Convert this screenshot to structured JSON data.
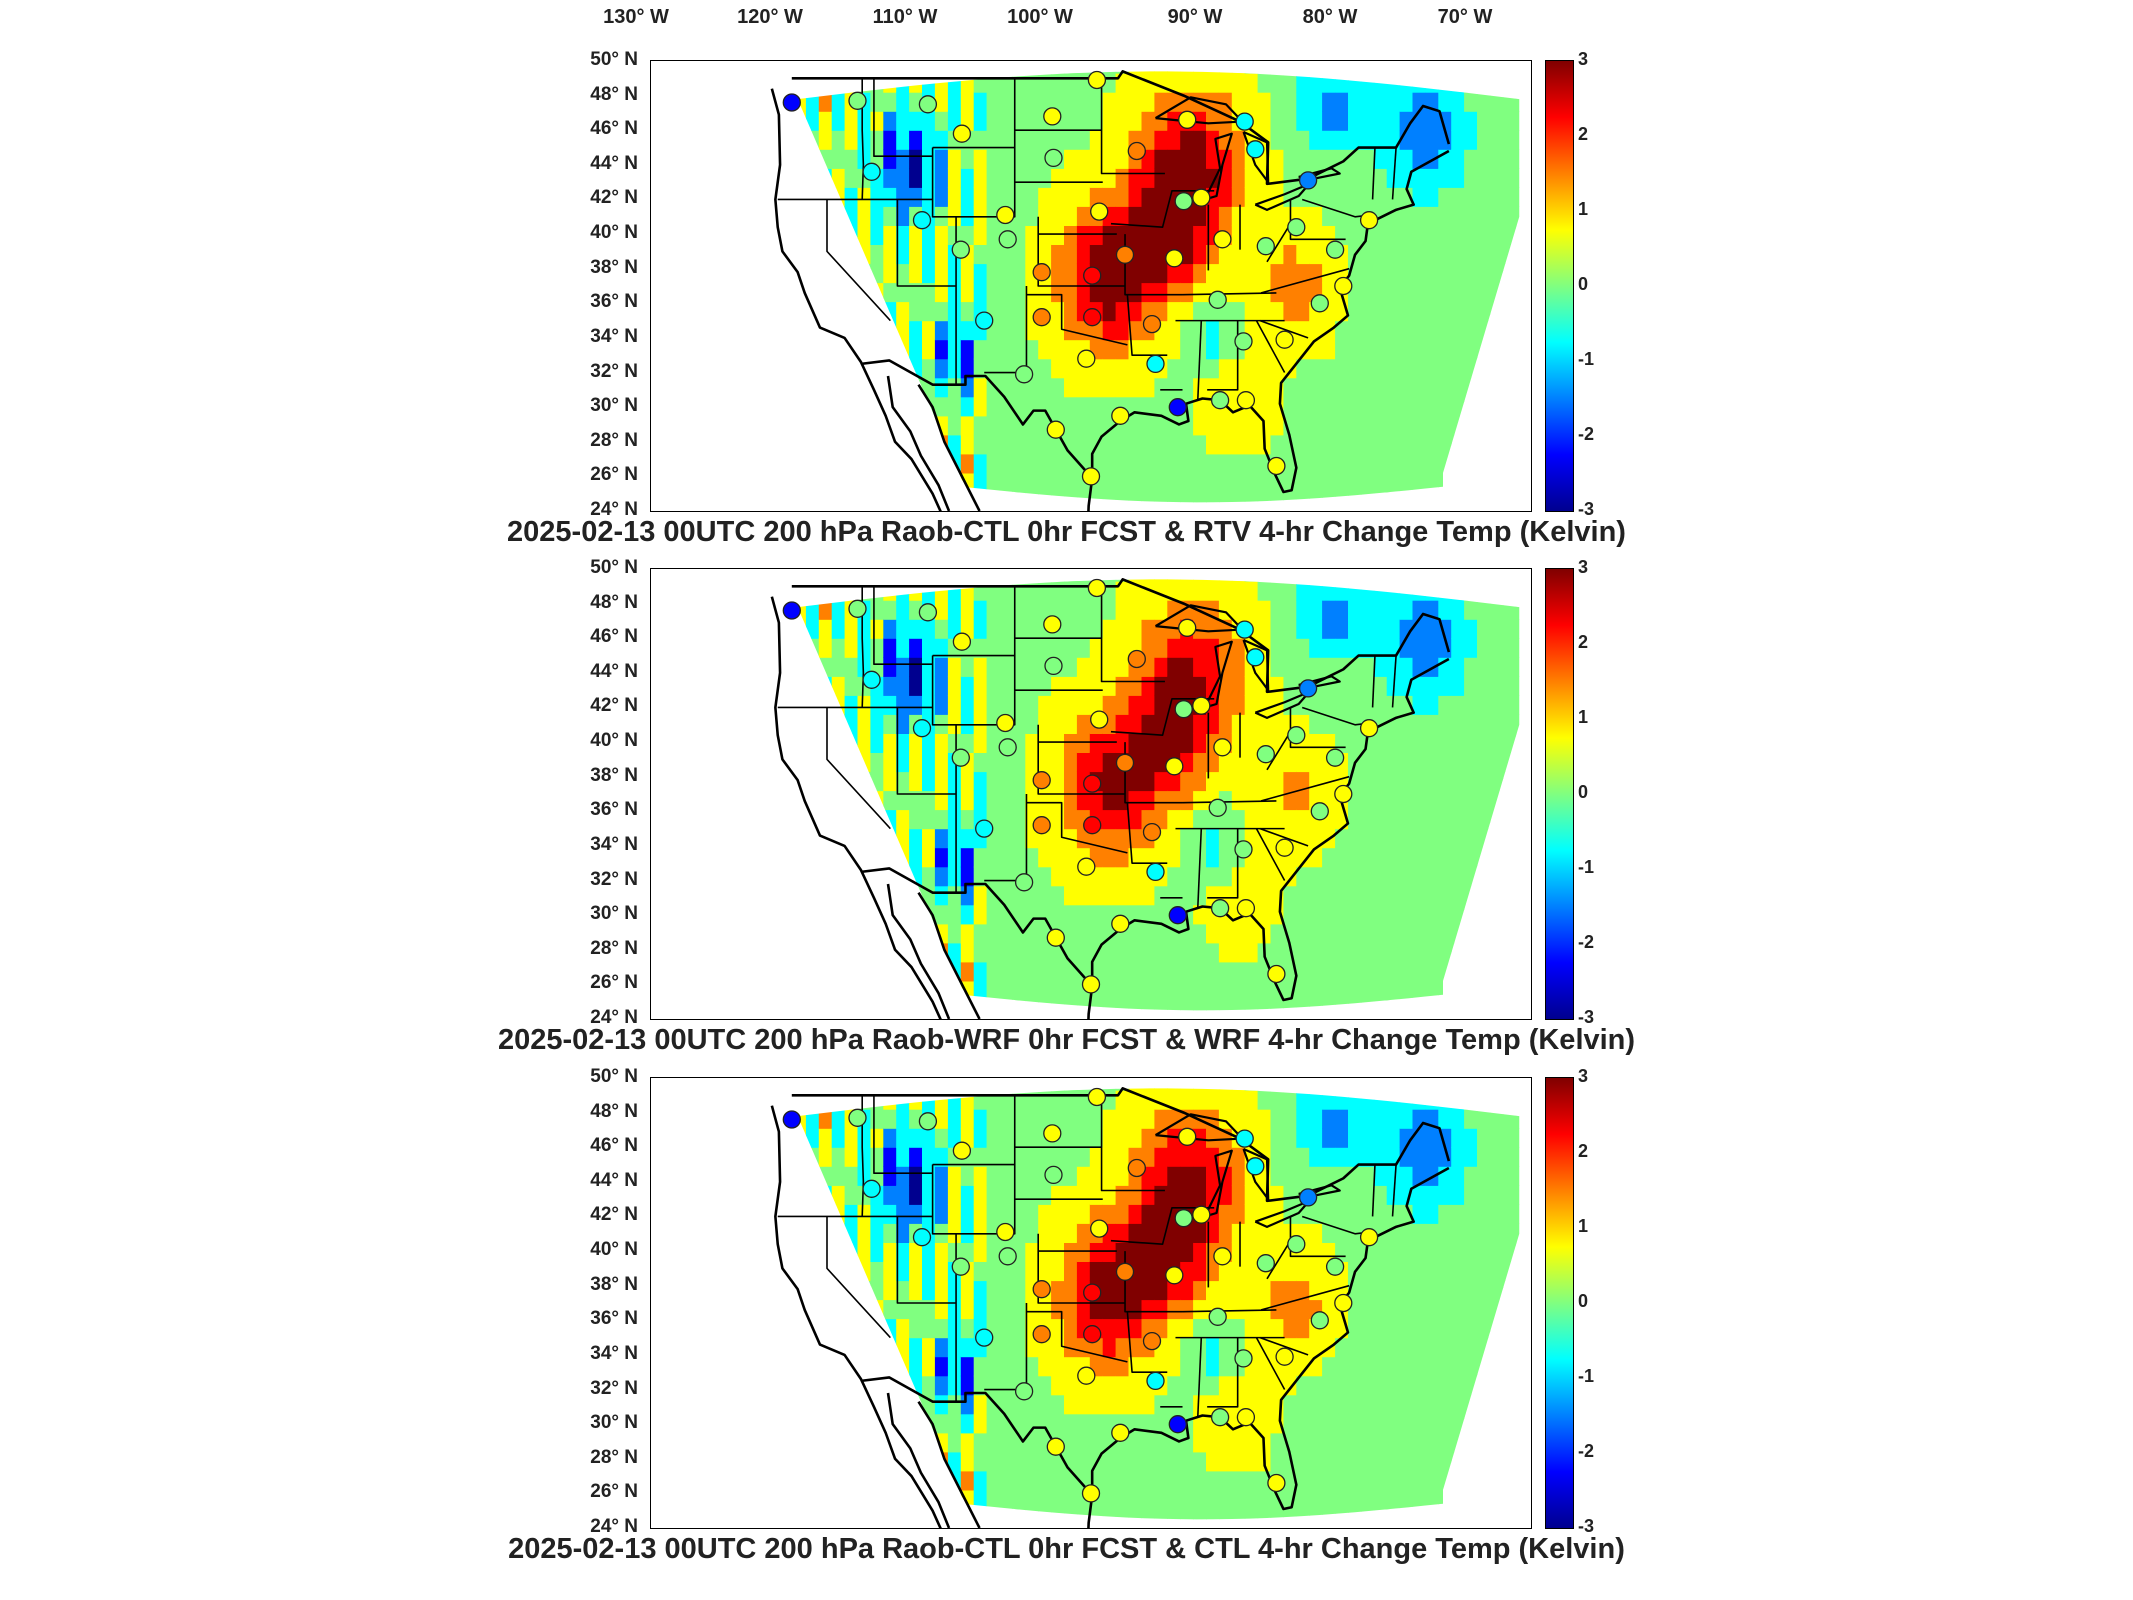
{
  "longitude_labels": [
    "130° W",
    "120° W",
    "110° W",
    "100° W",
    "90° W",
    "80° W",
    "70° W"
  ],
  "latitude_labels": [
    "50° N",
    "48° N",
    "46° N",
    "44° N",
    "42° N",
    "40° N",
    "38° N",
    "36° N",
    "34° N",
    "32° N",
    "30° N",
    "28° N",
    "26° N",
    "24° N"
  ],
  "colorbar": {
    "ticks": [
      "3",
      "2",
      "1",
      "0",
      "-1",
      "-2",
      "-3"
    ],
    "min": -3,
    "max": 3,
    "colormap": [
      "#00008f",
      "#0000ff",
      "#0080ff",
      "#00ffff",
      "#80ff80",
      "#ffff00",
      "#ff8000",
      "#ff0000",
      "#800000"
    ]
  },
  "panels": [
    {
      "title": "2025-02-13 00UTC 200 hPa Raob-CTL 0hr FCST & RTV 4-hr Change Temp (Kelvin)"
    },
    {
      "title": "2025-02-13 00UTC 200 hPa Raob-WRF 0hr FCST & WRF 4-hr Change Temp (Kelvin)"
    },
    {
      "title": "2025-02-13 00UTC 200 hPa Raob-CTL 0hr FCST & CTL 4-hr Change Temp (Kelvin)"
    }
  ],
  "stations": [
    {
      "lon": -123.0,
      "lat": 47.6,
      "value": -2.6
    },
    {
      "lon": -117.4,
      "lat": 47.7,
      "value": 0.0
    },
    {
      "lon": -111.4,
      "lat": 47.5,
      "value": 0.3
    },
    {
      "lon": -116.2,
      "lat": 43.6,
      "value": -0.6
    },
    {
      "lon": -108.5,
      "lat": 45.8,
      "value": 0.5
    },
    {
      "lon": -100.8,
      "lat": 46.8,
      "value": 0.8
    },
    {
      "lon": -97.0,
      "lat": 48.9,
      "value": 0.4
    },
    {
      "lon": -93.6,
      "lat": 44.8,
      "value": 1.2
    },
    {
      "lon": -89.3,
      "lat": 46.6,
      "value": 0.9
    },
    {
      "lon": -84.4,
      "lat": 46.5,
      "value": -0.7
    },
    {
      "lon": -83.5,
      "lat": 44.9,
      "value": -1.0
    },
    {
      "lon": -79.0,
      "lat": 43.1,
      "value": -1.3
    },
    {
      "lon": -104.8,
      "lat": 41.1,
      "value": 0.6
    },
    {
      "lon": -96.8,
      "lat": 41.3,
      "value": 0.4
    },
    {
      "lon": -100.7,
      "lat": 44.4,
      "value": 0.3
    },
    {
      "lon": -89.6,
      "lat": 41.9,
      "value": 0.2
    },
    {
      "lon": -88.1,
      "lat": 42.1,
      "value": 0.6
    },
    {
      "lon": -111.9,
      "lat": 40.8,
      "value": -0.4
    },
    {
      "lon": -108.6,
      "lat": 39.1,
      "value": -0.3
    },
    {
      "lon": -104.6,
      "lat": 39.7,
      "value": 0.2
    },
    {
      "lon": -101.7,
      "lat": 37.8,
      "value": 1.4
    },
    {
      "lon": -97.4,
      "lat": 37.6,
      "value": 2.0
    },
    {
      "lon": -94.6,
      "lat": 38.8,
      "value": 1.7
    },
    {
      "lon": -90.4,
      "lat": 38.6,
      "value": 1.0
    },
    {
      "lon": -86.3,
      "lat": 39.7,
      "value": 0.5
    },
    {
      "lon": -82.6,
      "lat": 39.3,
      "value": 0.3
    },
    {
      "lon": -80.0,
      "lat": 40.4,
      "value": 0.2
    },
    {
      "lon": -76.7,
      "lat": 39.1,
      "value": 0.1
    },
    {
      "lon": -73.8,
      "lat": 40.8,
      "value": 0.4
    },
    {
      "lon": -106.6,
      "lat": 35.0,
      "value": -0.8
    },
    {
      "lon": -101.7,
      "lat": 35.2,
      "value": 1.2
    },
    {
      "lon": -97.4,
      "lat": 35.2,
      "value": 2.3
    },
    {
      "lon": -92.3,
      "lat": 34.8,
      "value": 1.5
    },
    {
      "lon": -86.7,
      "lat": 36.2,
      "value": -0.3
    },
    {
      "lon": -84.5,
      "lat": 33.8,
      "value": 0.2
    },
    {
      "lon": -81.0,
      "lat": 33.9,
      "value": 0.6
    },
    {
      "lon": -78.0,
      "lat": 36.0,
      "value": -0.2
    },
    {
      "lon": -76.0,
      "lat": 37.0,
      "value": 0.5
    },
    {
      "lon": -103.2,
      "lat": 31.9,
      "value": 0.3
    },
    {
      "lon": -97.9,
      "lat": 32.8,
      "value": 0.8
    },
    {
      "lon": -95.0,
      "lat": 29.5,
      "value": 0.7
    },
    {
      "lon": -92.0,
      "lat": 32.5,
      "value": -1.0
    },
    {
      "lon": -90.1,
      "lat": 30.0,
      "value": -2.0
    },
    {
      "lon": -86.5,
      "lat": 30.4,
      "value": 0.3
    },
    {
      "lon": -84.3,
      "lat": 30.4,
      "value": 0.4
    },
    {
      "lon": -81.7,
      "lat": 26.6,
      "value": 0.6
    },
    {
      "lon": -97.5,
      "lat": 26.0,
      "value": 0.5
    },
    {
      "lon": -100.5,
      "lat": 28.7,
      "value": 0.9
    }
  ]
}
